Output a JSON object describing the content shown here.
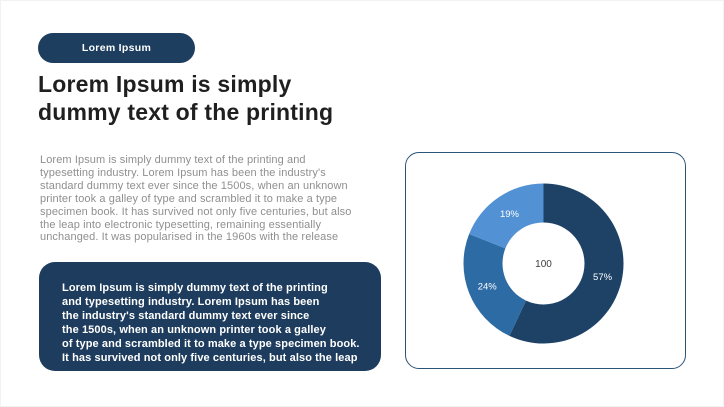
{
  "slide": {
    "tag_button_label": "Lorem Ipsum",
    "heading_lines": [
      "Lorem Ipsum is simply",
      "dummy text of the printing"
    ],
    "body_paragraph_lines": [
      "Lorem Ipsum is simply dummy text of the printing and",
      "typesetting industry. Lorem Ipsum has been the industry's",
      "standard dummy text ever since the 1500s, when an unknown",
      "printer took a galley of type and scrambled it to make a type",
      "specimen book. It has survived not only five centuries, but also",
      "the leap into electronic typesetting, remaining essentially",
      "unchanged. It was popularised in the 1960s with the release"
    ],
    "highlight_box_lines": [
      "Lorem Ipsum is simply dummy text of the printing",
      "and typesetting industry. Lorem Ipsum has been",
      "the industry's standard dummy text ever since",
      "the 1500s, when an unknown printer took a galley",
      "of type and scrambled it to make a type specimen book.",
      "It has survived not only five centuries, but also the leap"
    ]
  },
  "colors": {
    "navy_accent": "#1e3e60",
    "highlight_box_bg": "#1e3d5e",
    "chart_card_border": "#2b5479",
    "heading_text": "#1f1f1f",
    "body_text": "#8f8f8f",
    "slice_dark": "#1e4166",
    "slice_medium": "#2c6ba4",
    "slice_light": "#5191d4"
  },
  "chart_data": {
    "type": "pie",
    "donut": true,
    "title": "",
    "start_angle_deg": 0,
    "direction": "clockwise",
    "slices": [
      {
        "label": "57%",
        "value": 57,
        "color": "#1e4166"
      },
      {
        "label": "24%",
        "value": 24,
        "color": "#2c6ba4"
      },
      {
        "label": "19%",
        "value": 19,
        "color": "#5191d4"
      }
    ],
    "total": 100,
    "center_label": "100",
    "outer_radius": 80,
    "inner_radius": 41,
    "legend": "none",
    "labels_position": "inside"
  }
}
